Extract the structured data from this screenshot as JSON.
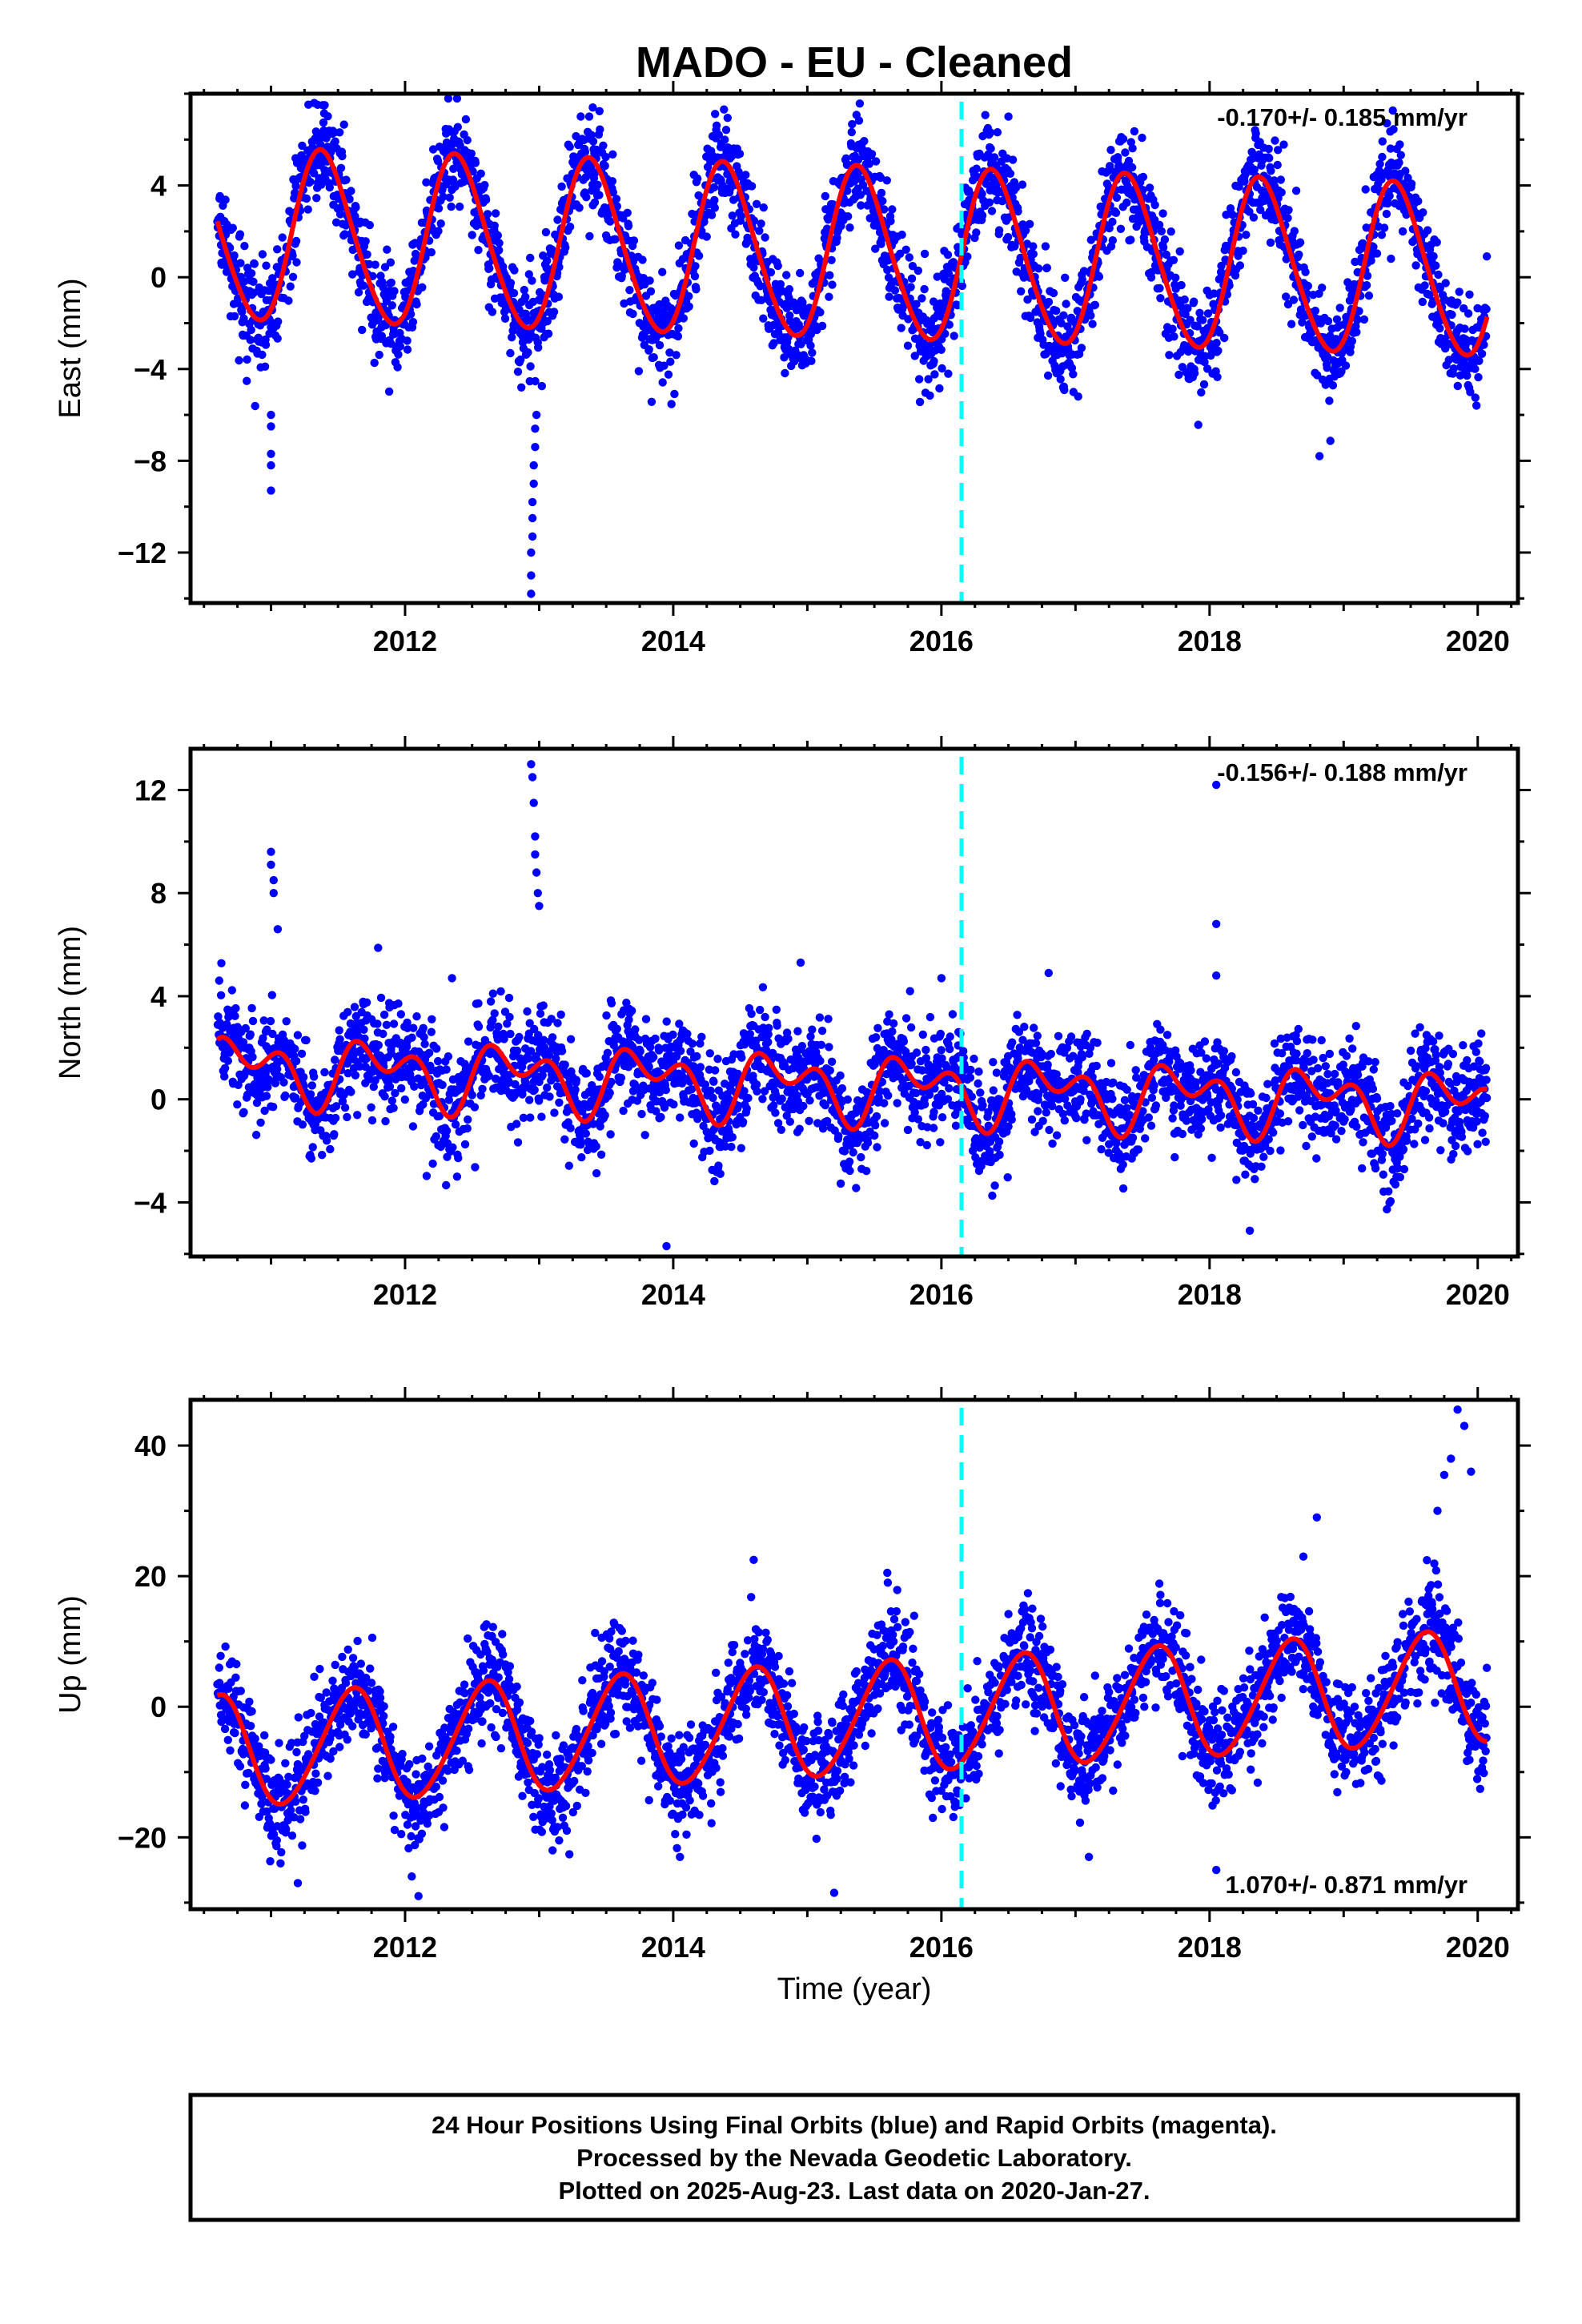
{
  "figure": {
    "title": "MADO  - EU - Cleaned",
    "footer": [
      "24 Hour Positions Using Final Orbits (blue) and Rapid Orbits (magenta).",
      "Processed by the Nevada Geodetic Laboratory.",
      "Plotted on 2025-Aug-23. Last data on 2020-Jan-27."
    ],
    "colors": {
      "final_orbits": "#0000ff",
      "rapid_orbits": "#ff00ff",
      "model_fit": "#ff0000",
      "event_line": "#00ffff"
    }
  },
  "chart_data": [
    {
      "type": "scatter",
      "panel": "east",
      "ylabel": "East (mm)",
      "xlabel": "",
      "xlim": [
        2010.4,
        2020.3
      ],
      "ylim": [
        -14.2,
        8.0
      ],
      "xticks": [
        2012,
        2014,
        2016,
        2018,
        2020
      ],
      "yticks": [
        -12,
        -8,
        -4,
        0,
        4
      ],
      "rate_text": "-0.170+/- 0.185 mm/yr",
      "rate_position": "top-right",
      "event_line_x": 2016.15,
      "series": [
        {
          "name": "Final Orbits (blue)",
          "style": "points",
          "time_start": 2010.6,
          "time_end": 2020.07,
          "model": {
            "offset": 1.0,
            "trend_mm_per_yr": -0.17,
            "annual_amp_mm": 3.7,
            "annual_peak_year_fraction": 0.39,
            "semiannual_amp_mm": 0.35,
            "semiannual_peak_year_fraction": 0.3,
            "scatter_mm": 1.1
          },
          "outliers": [
            [
              2011.0,
              -9.3
            ],
            [
              2011.0,
              -8.2
            ],
            [
              2011.0,
              -7.7
            ],
            [
              2011.0,
              -6.5
            ],
            [
              2011.0,
              -6.0
            ],
            [
              2012.94,
              -13.8
            ],
            [
              2012.94,
              -13.0
            ],
            [
              2012.94,
              -12.0
            ],
            [
              2012.95,
              -11.3
            ],
            [
              2012.95,
              -10.5
            ],
            [
              2012.95,
              -9.8
            ],
            [
              2012.96,
              -9.0
            ],
            [
              2012.96,
              -8.2
            ],
            [
              2012.97,
              -7.4
            ],
            [
              2012.97,
              -6.6
            ],
            [
              2012.98,
              -6.0
            ],
            [
              2018.82,
              -7.8
            ],
            [
              2016.5,
              7.0
            ],
            [
              2011.4,
              7.5
            ],
            [
              2013.4,
              7.4
            ]
          ]
        },
        {
          "name": "Model fit",
          "style": "line",
          "time_start": 2010.6,
          "time_end": 2020.07
        }
      ]
    },
    {
      "type": "scatter",
      "panel": "north",
      "ylabel": "North (mm)",
      "xlabel": "",
      "xlim": [
        2010.4,
        2020.3
      ],
      "ylim": [
        -6.1,
        13.6
      ],
      "xticks": [
        2012,
        2014,
        2016,
        2018,
        2020
      ],
      "yticks": [
        -4,
        0,
        4,
        8,
        12
      ],
      "rate_text": "-0.156+/- 0.188 mm/yr",
      "rate_position": "top-right",
      "event_line_x": 2016.15,
      "series": [
        {
          "name": "Final Orbits (blue)",
          "style": "points",
          "time_start": 2010.6,
          "time_end": 2020.07,
          "model": {
            "offset": 0.5,
            "trend_mm_per_yr": -0.156,
            "annual_amp_mm": 0.9,
            "annual_peak_year_fraction": 0.8,
            "semiannual_amp_mm": 0.8,
            "semiannual_peak_year_fraction": 0.1,
            "scatter_mm": 1.0
          },
          "outliers": [
            [
              2011.0,
              9.6
            ],
            [
              2011.0,
              9.1
            ],
            [
              2011.02,
              8.5
            ],
            [
              2011.02,
              8.0
            ],
            [
              2011.05,
              6.6
            ],
            [
              2012.94,
              13.0
            ],
            [
              2012.95,
              12.5
            ],
            [
              2012.96,
              11.5
            ],
            [
              2012.97,
              10.2
            ],
            [
              2012.97,
              9.5
            ],
            [
              2012.98,
              8.8
            ],
            [
              2012.99,
              8.0
            ],
            [
              2013.0,
              7.5
            ],
            [
              2018.05,
              12.2
            ],
            [
              2018.05,
              6.8
            ],
            [
              2018.05,
              4.8
            ],
            [
              2014.95,
              5.3
            ],
            [
              2016.0,
              4.7
            ],
            [
              2016.8,
              4.9
            ],
            [
              2013.95,
              -5.7
            ],
            [
              2018.3,
              -5.1
            ],
            [
              2012.35,
              4.7
            ]
          ]
        },
        {
          "name": "Model fit",
          "style": "line",
          "time_start": 2010.6,
          "time_end": 2020.07
        }
      ]
    },
    {
      "type": "scatter",
      "panel": "up",
      "ylabel": "Up (mm)",
      "xlabel": "Time (year)",
      "xlim": [
        2010.4,
        2020.3
      ],
      "ylim": [
        -31,
        47
      ],
      "xticks": [
        2012,
        2014,
        2016,
        2018,
        2020
      ],
      "yticks": [
        -20,
        0,
        20,
        40
      ],
      "rate_text": "1.070+/- 0.871 mm/yr",
      "rate_position": "bottom-right",
      "event_line_x": 2016.15,
      "series": [
        {
          "name": "Final Orbits (blue)",
          "style": "points",
          "time_start": 2010.6,
          "time_end": 2020.07,
          "model": {
            "offset": -2.0,
            "trend_mm_per_yr": 1.07,
            "annual_amp_mm": 8.5,
            "annual_peak_year_fraction": 0.6,
            "semiannual_amp_mm": 0.8,
            "semiannual_peak_year_fraction": 0.2,
            "scatter_mm": 4.0
          },
          "outliers": [
            [
              2019.85,
              45.5
            ],
            [
              2019.9,
              43.0
            ],
            [
              2019.75,
              35.5
            ],
            [
              2019.95,
              36.0
            ],
            [
              2019.7,
              30.0
            ],
            [
              2019.8,
              38.0
            ],
            [
              2018.8,
              29.0
            ],
            [
              2018.7,
              23.0
            ],
            [
              2012.1,
              -29.0
            ],
            [
              2012.05,
              -26.0
            ],
            [
              2011.2,
              -27.0
            ],
            [
              2015.2,
              -28.5
            ],
            [
              2014.05,
              -23.0
            ],
            [
              2013.1,
              -22.0
            ],
            [
              2017.1,
              -23.0
            ],
            [
              2018.05,
              -25.0
            ],
            [
              2014.6,
              22.5
            ],
            [
              2015.6,
              19.0
            ]
          ]
        },
        {
          "name": "Model fit",
          "style": "line",
          "time_start": 2010.6,
          "time_end": 2020.07
        }
      ]
    }
  ]
}
